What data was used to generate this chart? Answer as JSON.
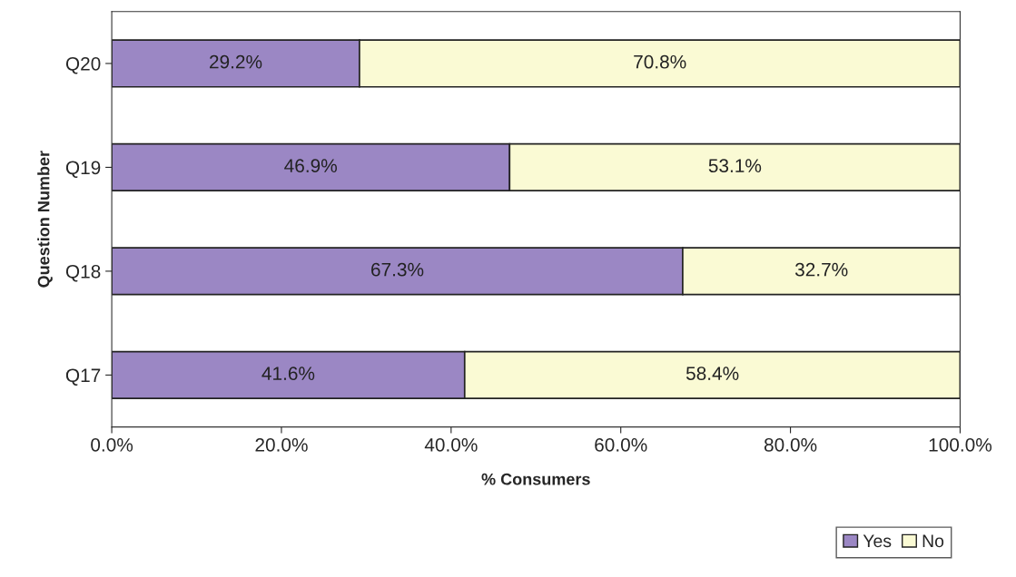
{
  "chart_data": {
    "type": "bar",
    "orientation": "horizontal",
    "stacked": true,
    "xlabel": "% Consumers",
    "ylabel": "Question Number",
    "categories": [
      "Q20",
      "Q19",
      "Q18",
      "Q17"
    ],
    "series": [
      {
        "name": "Yes",
        "color": "#9b87c4",
        "values": [
          29.2,
          46.9,
          67.3,
          41.6
        ],
        "value_labels": [
          "29.2%",
          "46.9%",
          "67.3%",
          "41.6%"
        ]
      },
      {
        "name": "No",
        "color": "#fafad4",
        "values": [
          70.8,
          53.1,
          32.7,
          58.4
        ],
        "value_labels": [
          "70.8%",
          "53.1%",
          "32.7%",
          "58.4%"
        ]
      }
    ],
    "xlim": [
      0,
      100
    ],
    "xticks": [
      {
        "value": 0,
        "label": "0.0%"
      },
      {
        "value": 20,
        "label": "20.0%"
      },
      {
        "value": 40,
        "label": "40.0%"
      },
      {
        "value": 60,
        "label": "60.0%"
      },
      {
        "value": 80,
        "label": "80.0%"
      },
      {
        "value": 100,
        "label": "100.0%"
      }
    ],
    "legend": "bottom right",
    "grid": false
  }
}
